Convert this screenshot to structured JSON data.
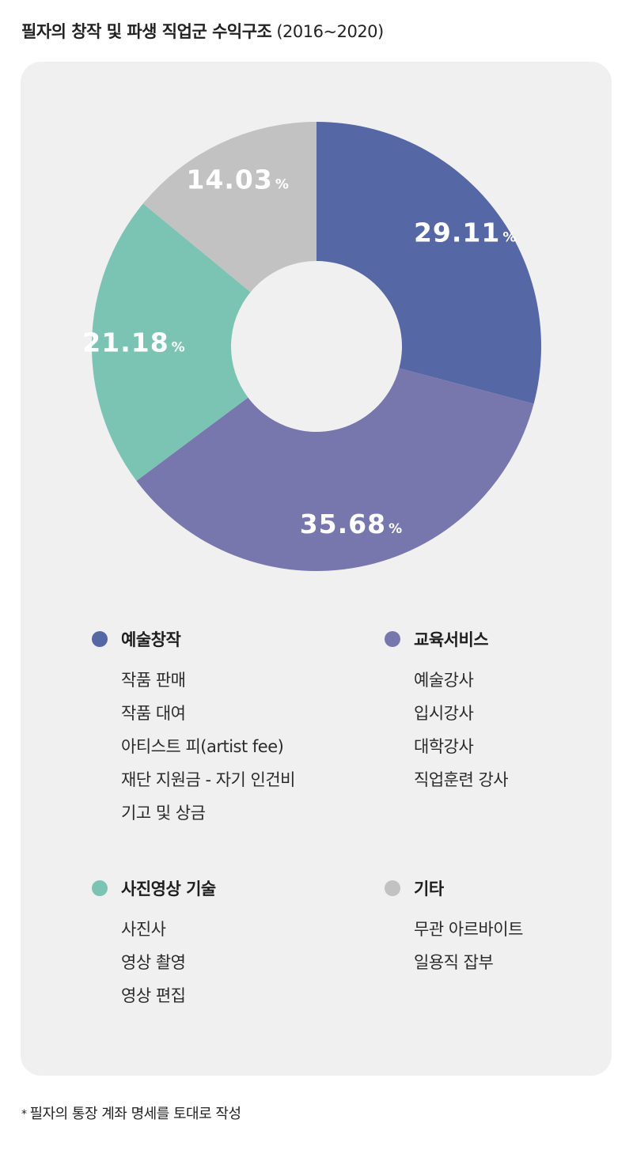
{
  "title": {
    "main": "필자의 창작 및 파생 직업군 수익구조",
    "sub": "(2016~2020)"
  },
  "chart_data": {
    "type": "pie",
    "title": "필자의 창작 및 파생 직업군 수익구조 (2016~2020)",
    "donut": true,
    "slices": [
      {
        "name": "예술창작",
        "value": 29.11,
        "label": "29.11",
        "color": "#5567a4"
      },
      {
        "name": "교육서비스",
        "value": 35.68,
        "label": "35.68",
        "color": "#7777ae"
      },
      {
        "name": "사진영상 기술",
        "value": 21.18,
        "label": "21.18",
        "color": "#7bc4b3"
      },
      {
        "name": "기타",
        "value": 14.03,
        "label": "14.03",
        "color": "#c2c2c2"
      }
    ],
    "unit": "%",
    "start": "12 o'clock, clockwise"
  },
  "legend": [
    {
      "name": "예술창작",
      "color": "#5567a4",
      "items": [
        "작품 판매",
        "작품 대여",
        "아티스트 피(artist fee)",
        "재단 지원금 - 자기 인건비",
        "기고 및 상금"
      ]
    },
    {
      "name": "교육서비스",
      "color": "#7777ae",
      "items": [
        "예술강사",
        "입시강사",
        "대학강사",
        "직업훈련 강사"
      ]
    },
    {
      "name": "사진영상 기술",
      "color": "#7bc4b3",
      "items": [
        "사진사",
        "영상 촬영",
        "영상 편집"
      ]
    },
    {
      "name": "기타",
      "color": "#c2c2c2",
      "items": [
        "무관 아르바이트",
        "일용직 잡부"
      ]
    }
  ],
  "footnote": {
    "marker": "*",
    "text": "필자의 통장 계좌 명세를 토대로 작성"
  }
}
